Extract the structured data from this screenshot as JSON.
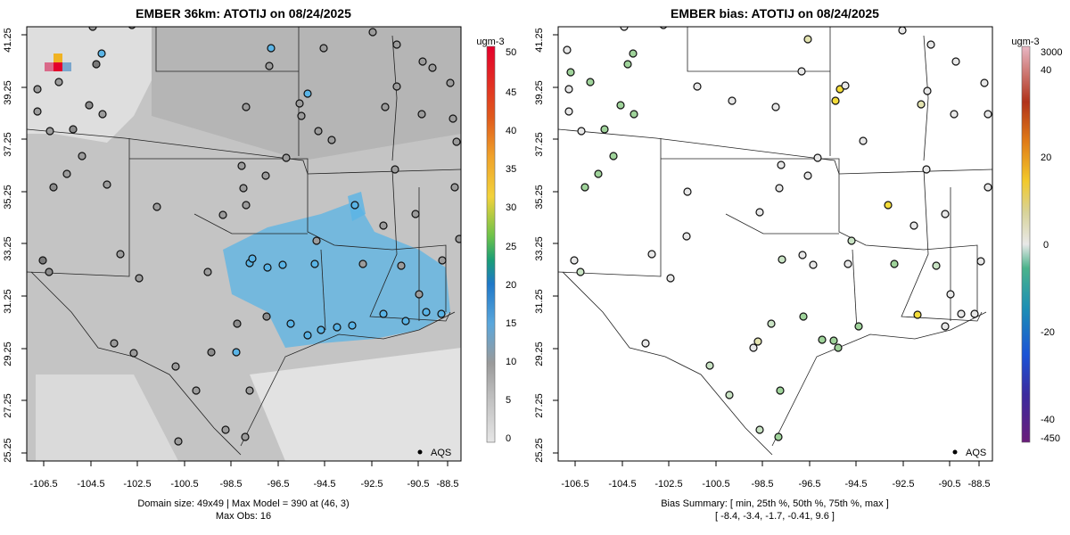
{
  "left_panel": {
    "title": "EMBER 36km: ATOTIJ on 08/24/2025",
    "legend_label": "AQS",
    "colorbar_unit": "ugm-3",
    "colorbar_ticks": [
      "0",
      "5",
      "10",
      "15",
      "20",
      "25",
      "30",
      "35",
      "40",
      "45",
      "50"
    ],
    "footer_line1": "Domain size: 49x49 | Max Model = 390 at (46, 3)",
    "footer_line2": "Max Obs: 16"
  },
  "right_panel": {
    "title": "EMBER bias: ATOTIJ on 08/24/2025",
    "legend_label": "AQS",
    "colorbar_unit": "ugm-3",
    "colorbar_ticks": [
      "3000",
      "40",
      "20",
      "0",
      "-20",
      "-40",
      "-450"
    ],
    "footer_line1": "Bias Summary: [ min, 25th %, 50th %, 75th %, max ]",
    "footer_line2": "[ -8.4,   -3.4,   -1.7,   -0.41,   9.6 ]"
  },
  "x_ticks": [
    "-106.5",
    "-104.5",
    "-102.5",
    "-100.5",
    "-98.5",
    "-96.5",
    "-94.5",
    "-92.5",
    "-90.5",
    "-88.5"
  ],
  "y_ticks": [
    "41.25",
    "39.25",
    "37.25",
    "35.25",
    "33.25",
    "31.25",
    "29.25",
    "27.25",
    "25.25"
  ],
  "colors": {
    "obs_blue": "#5ab4e6",
    "grid_grey": "#bdbdbd",
    "light_grey": "#e3e3e3",
    "bias_green": "#9fd39a",
    "bias_yellow": "#f3dc3a"
  }
}
